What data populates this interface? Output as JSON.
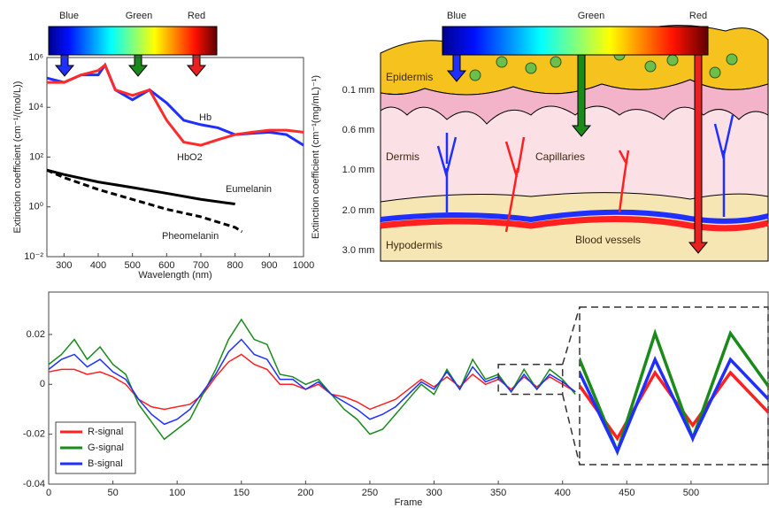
{
  "chart_data": [
    {
      "type": "line",
      "log_y": true,
      "colorbar_labels": [
        "Blue",
        "Green",
        "Red"
      ],
      "xlabel": "Wavelength (nm)",
      "ylabel": "Extinction coefficient (cm⁻¹/(mol/L))",
      "y2label": "Extinction coefficient (cm⁻¹(mg/mL)⁻¹)",
      "xlim": [
        250,
        1000
      ],
      "xticks": [
        300,
        400,
        500,
        600,
        700,
        800,
        900,
        1000
      ],
      "ylim": [
        0.01,
        1000000
      ],
      "yticks": [
        {
          "value": 0.01,
          "label": "10⁻²"
        },
        {
          "value": 1,
          "label": "10⁰"
        },
        {
          "value": 100,
          "label": "10²"
        },
        {
          "value": 10000,
          "label": "10⁴"
        },
        {
          "value": 1000000,
          "label": "10⁶"
        }
      ],
      "series": [
        {
          "name": "Hb",
          "color": "#1f2fff",
          "x": [
            250,
            300,
            350,
            400,
            420,
            450,
            500,
            550,
            600,
            650,
            700,
            750,
            800,
            850,
            900,
            950,
            1000
          ],
          "values": [
            150000,
            100000,
            200000,
            200000,
            500000,
            50000,
            20000,
            50000,
            15000,
            3000,
            2000,
            1500,
            800,
            900,
            1000,
            800,
            300
          ]
        },
        {
          "name": "HbO2",
          "color": "#ff2a2a",
          "x": [
            250,
            300,
            350,
            400,
            420,
            450,
            500,
            550,
            600,
            650,
            700,
            750,
            800,
            850,
            900,
            950,
            1000
          ],
          "values": [
            100000,
            100000,
            200000,
            300000,
            500000,
            50000,
            30000,
            50000,
            3000,
            400,
            300,
            500,
            800,
            1000,
            1200,
            1200,
            1000
          ]
        },
        {
          "name": "Eumelanin",
          "color": "#000000",
          "x": [
            250,
            300,
            400,
            500,
            600,
            700,
            800
          ],
          "values": [
            30,
            20,
            10,
            6,
            3.5,
            2,
            1.3
          ]
        },
        {
          "name": "Pheomelanin",
          "color": "#000000",
          "dashed": true,
          "x": [
            250,
            300,
            400,
            500,
            600,
            700,
            800,
            820
          ],
          "values": [
            30,
            15,
            5,
            2,
            0.8,
            0.4,
            0.15,
            0.1
          ]
        }
      ]
    },
    {
      "type": "line",
      "xlabel": "Frame",
      "legend": "lower left",
      "xlim": [
        0,
        560
      ],
      "xticks": [
        0,
        50,
        100,
        150,
        200,
        250,
        300,
        350,
        400,
        450,
        500
      ],
      "ylim": [
        -0.04,
        0.037
      ],
      "yticks": [
        -0.04,
        -0.02,
        0,
        0.02
      ],
      "zoom_x": [
        350,
        400
      ],
      "zoom_y": [
        -0.004,
        0.008
      ],
      "x": [
        0,
        10,
        20,
        30,
        40,
        50,
        60,
        70,
        80,
        90,
        100,
        110,
        120,
        130,
        140,
        150,
        160,
        170,
        180,
        190,
        200,
        210,
        220,
        230,
        240,
        250,
        260,
        270,
        280,
        290,
        300,
        310,
        320,
        330,
        340,
        350,
        360,
        370,
        380,
        390,
        400,
        410
      ],
      "series": [
        {
          "name": "R-signal",
          "color": "#ff2020",
          "values": [
            0.005,
            0.006,
            0.006,
            0.004,
            0.005,
            0.003,
            0.0,
            -0.006,
            -0.009,
            -0.01,
            -0.009,
            -0.008,
            -0.004,
            0.003,
            0.009,
            0.012,
            0.008,
            0.006,
            0.0,
            0.0,
            -0.002,
            0.0,
            -0.004,
            -0.005,
            -0.007,
            -0.01,
            -0.008,
            -0.006,
            -0.002,
            0.002,
            -0.001,
            0.003,
            -0.001,
            0.004,
            0.0,
            0.002,
            -0.002,
            0.003,
            -0.001,
            0.003,
            0.0,
            -0.003
          ]
        },
        {
          "name": "G-signal",
          "color": "#1a8a1a",
          "values": [
            0.008,
            0.012,
            0.018,
            0.01,
            0.015,
            0.008,
            0.004,
            -0.008,
            -0.015,
            -0.022,
            -0.018,
            -0.014,
            -0.004,
            0.006,
            0.018,
            0.026,
            0.018,
            0.016,
            0.004,
            0.003,
            0.0,
            0.002,
            -0.004,
            -0.01,
            -0.014,
            -0.02,
            -0.018,
            -0.012,
            -0.006,
            0.0,
            -0.004,
            0.006,
            -0.002,
            0.01,
            0.002,
            0.004,
            -0.003,
            0.006,
            -0.002,
            0.006,
            0.002,
            -0.004
          ]
        },
        {
          "name": "B-signal",
          "color": "#1f2fff",
          "values": [
            0.006,
            0.01,
            0.012,
            0.007,
            0.01,
            0.005,
            0.002,
            -0.006,
            -0.012,
            -0.016,
            -0.014,
            -0.01,
            -0.003,
            0.004,
            0.013,
            0.018,
            0.012,
            0.01,
            0.002,
            0.002,
            -0.002,
            0.001,
            -0.004,
            -0.007,
            -0.01,
            -0.014,
            -0.012,
            -0.009,
            -0.004,
            0.001,
            -0.002,
            0.005,
            -0.002,
            0.007,
            0.001,
            0.003,
            -0.003,
            0.004,
            -0.002,
            0.004,
            0.001,
            -0.003
          ]
        }
      ]
    }
  ],
  "diagram": {
    "colorbar_labels": [
      "Blue",
      "Green",
      "Red"
    ],
    "layers": [
      "Epidermis",
      "Dermis",
      "Capillaries",
      "Hypodermis",
      "Blood vessels"
    ],
    "depths": [
      "0.1 mm",
      "0.6 mm",
      "1.0 mm",
      "2.0 mm",
      "3.0 mm"
    ]
  }
}
